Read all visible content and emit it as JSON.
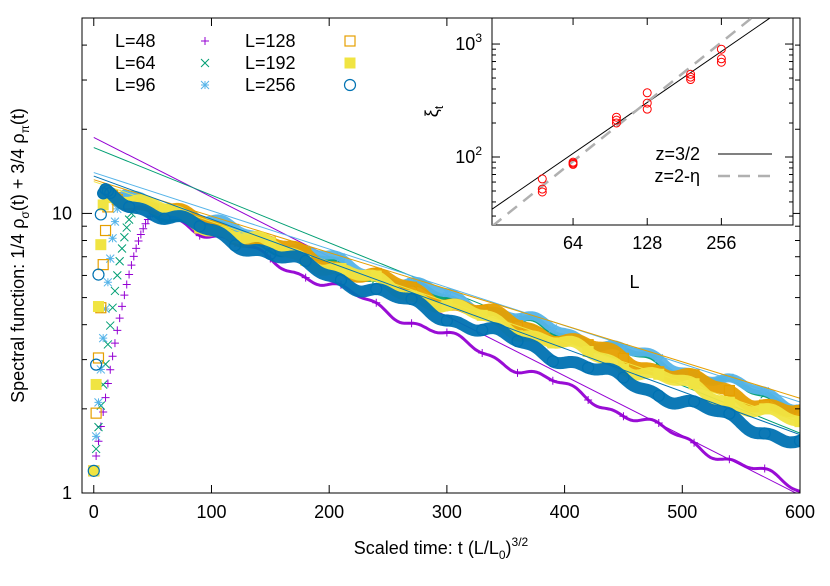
{
  "chart_data": [
    {
      "type": "scatter",
      "panel": "main",
      "xlabel": "Scaled time: t (L/L",
      "xlabel_sub": "0",
      "xlabel_end": ")",
      "xlabel_sup": "3/2",
      "ylabel_parts": [
        "Spectral function: 1/4 ρ",
        "σ",
        "(t) + 3/4 ρ",
        "π",
        "(t)"
      ],
      "yscale": "log",
      "xlim": [
        -10,
        600
      ],
      "ylim": [
        1,
        50
      ],
      "x_ticks": [
        0,
        100,
        200,
        300,
        400,
        500,
        600
      ],
      "x_tick_labels": [
        "0",
        "100",
        "200",
        "300",
        "400",
        "500",
        "600"
      ],
      "y_major_ticks": [
        1,
        10
      ],
      "y_major_tick_labels": [
        "1",
        "10"
      ],
      "grid": false,
      "legend_position": "top-left",
      "series": [
        {
          "name": "L=48",
          "marker": "plus",
          "color": "#9400d3",
          "peak_t": 55,
          "peak_v": 10.2,
          "decay_rate": 0.00421,
          "t_end": 600,
          "fit_a": 18.7,
          "fit_rate": 0.00491
        },
        {
          "name": "L=64",
          "marker": "x",
          "color": "#009e73",
          "peak_t": 38,
          "peak_v": 10.7,
          "decay_rate": 0.00294,
          "t_end": 600,
          "fit_a": 17.2,
          "fit_rate": 0.00392
        },
        {
          "name": "L=96",
          "marker": "star",
          "color": "#56b4e9",
          "peak_t": 25,
          "peak_v": 11.6,
          "decay_rate": 0.003,
          "t_end": 600,
          "fit_a": 14.0,
          "fit_rate": 0.00315
        },
        {
          "name": "L=128",
          "marker": "square-open",
          "color": "#e69f00",
          "peak_t": 15,
          "peak_v": 11.8,
          "decay_rate": 0.00312,
          "t_end": 600,
          "fit_a": 13.2,
          "fit_rate": 0.003
        },
        {
          "name": "L=192",
          "marker": "square-filled",
          "color": "#f0e442",
          "peak_t": 10,
          "peak_v": 12.0,
          "decay_rate": 0.00325,
          "t_end": 600,
          "fit_a": 13.0,
          "fit_rate": 0.0033
        },
        {
          "name": "L=256",
          "marker": "circle-open",
          "color": "#0072b2",
          "peak_t": 8,
          "peak_v": 11.8,
          "decay_rate": 0.00348,
          "t_end": 600,
          "fit_a": 13.6,
          "fit_rate": 0.00355
        }
      ]
    },
    {
      "type": "scatter",
      "panel": "inset",
      "xlabel": "L",
      "ylabel": "ξ",
      "ylabel_sub": "t",
      "xscale": "log",
      "yscale": "log",
      "xlim": [
        30,
        500
      ],
      "ylim": [
        25,
        1700
      ],
      "x_ticks": [
        64,
        128,
        256
      ],
      "x_tick_labels": [
        "64",
        "128",
        "256"
      ],
      "y_major_ticks": [
        100,
        1000
      ],
      "y_tick_labels": [
        {
          "base": "10",
          "exp": "2"
        },
        {
          "base": "10",
          "exp": "3"
        }
      ],
      "points_color": "#ff0000",
      "points": [
        {
          "L": 48,
          "xi": 64
        },
        {
          "L": 48,
          "xi": 52
        },
        {
          "L": 48,
          "xi": 49
        },
        {
          "L": 64,
          "xi": 90
        },
        {
          "L": 64,
          "xi": 88
        },
        {
          "L": 64,
          "xi": 86
        },
        {
          "L": 96,
          "xi": 225
        },
        {
          "L": 96,
          "xi": 212
        },
        {
          "L": 96,
          "xi": 200
        },
        {
          "L": 128,
          "xi": 370
        },
        {
          "L": 128,
          "xi": 300
        },
        {
          "L": 128,
          "xi": 265
        },
        {
          "L": 192,
          "xi": 540
        },
        {
          "L": 192,
          "xi": 510
        },
        {
          "L": 192,
          "xi": 485
        },
        {
          "L": 256,
          "xi": 900
        },
        {
          "L": 256,
          "xi": 740
        },
        {
          "L": 256,
          "xi": 690
        }
      ],
      "lines": [
        {
          "name": "z=3/2",
          "style": "solid",
          "color": "#000000",
          "exponent": 1.5,
          "anchor_L": 100,
          "anchor_xi": 210
        },
        {
          "name": "z=2-η",
          "style": "dashed",
          "color": "#b0b0b0",
          "exponent": 1.75,
          "anchor_L": 100,
          "anchor_xi": 200
        }
      ],
      "legend_position": "bottom-right"
    }
  ]
}
